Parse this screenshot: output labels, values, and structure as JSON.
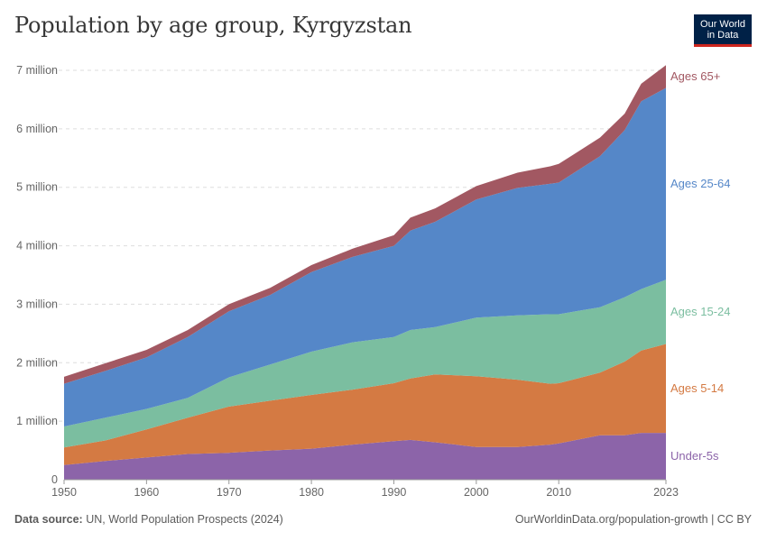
{
  "header": {
    "title": "Population by age group, Kyrgyzstan",
    "logo_line1": "Our World",
    "logo_line2": "in Data"
  },
  "footer": {
    "source_label": "Data source:",
    "source_text": "UN, World Population Prospects (2024)",
    "url": "OurWorldinData.org/population-growth | CC BY"
  },
  "chart_data": {
    "type": "area",
    "stacked": true,
    "title": "Population by age group, Kyrgyzstan",
    "x": [
      1950,
      1955,
      1960,
      1965,
      1970,
      1975,
      1980,
      1985,
      1990,
      1992,
      1995,
      2000,
      2005,
      2009,
      2010,
      2015,
      2018,
      2020,
      2023
    ],
    "series": [
      {
        "name": "Under-5s",
        "color": "#8c64a9",
        "values": [
          0.25,
          0.32,
          0.38,
          0.44,
          0.46,
          0.5,
          0.53,
          0.6,
          0.66,
          0.68,
          0.64,
          0.56,
          0.56,
          0.6,
          0.62,
          0.76,
          0.76,
          0.8,
          0.8
        ]
      },
      {
        "name": "Ages 5-14",
        "color": "#d47a43",
        "values": [
          0.3,
          0.35,
          0.48,
          0.62,
          0.79,
          0.85,
          0.92,
          0.94,
          0.99,
          1.05,
          1.16,
          1.21,
          1.15,
          1.04,
          1.03,
          1.07,
          1.26,
          1.41,
          1.52
        ]
      },
      {
        "name": "Ages 15-24",
        "color": "#7bbea0",
        "values": [
          0.36,
          0.39,
          0.35,
          0.34,
          0.5,
          0.62,
          0.74,
          0.81,
          0.79,
          0.83,
          0.81,
          1.0,
          1.1,
          1.19,
          1.18,
          1.12,
          1.1,
          1.05,
          1.1
        ]
      },
      {
        "name": "Ages 25-64",
        "color": "#5587c8",
        "values": [
          0.73,
          0.8,
          0.88,
          1.04,
          1.13,
          1.19,
          1.36,
          1.46,
          1.56,
          1.7,
          1.8,
          2.02,
          2.18,
          2.23,
          2.25,
          2.58,
          2.86,
          3.21,
          3.28
        ]
      },
      {
        "name": "Ages 65+",
        "color": "#a25862",
        "values": [
          0.12,
          0.13,
          0.13,
          0.12,
          0.12,
          0.12,
          0.12,
          0.14,
          0.18,
          0.22,
          0.23,
          0.23,
          0.26,
          0.3,
          0.32,
          0.32,
          0.28,
          0.3,
          0.39
        ]
      }
    ],
    "ylabel": "",
    "xlabel": "",
    "ylim": [
      0,
      7
    ],
    "y_ticks": [
      {
        "value": 0,
        "label": "0"
      },
      {
        "value": 1,
        "label": "1 million"
      },
      {
        "value": 2,
        "label": "2 million"
      },
      {
        "value": 3,
        "label": "3 million"
      },
      {
        "value": 4,
        "label": "4 million"
      },
      {
        "value": 5,
        "label": "5 million"
      },
      {
        "value": 6,
        "label": "6 million"
      },
      {
        "value": 7,
        "label": "7 million"
      }
    ],
    "x_ticks": [
      {
        "value": 1950,
        "label": "1950"
      },
      {
        "value": 1960,
        "label": "1960"
      },
      {
        "value": 1970,
        "label": "1970"
      },
      {
        "value": 1980,
        "label": "1980"
      },
      {
        "value": 1990,
        "label": "1990"
      },
      {
        "value": 2000,
        "label": "2000"
      },
      {
        "value": 2010,
        "label": "2010"
      },
      {
        "value": 2023,
        "label": "2023"
      }
    ],
    "gridlines": true,
    "legend": "right-inline"
  }
}
